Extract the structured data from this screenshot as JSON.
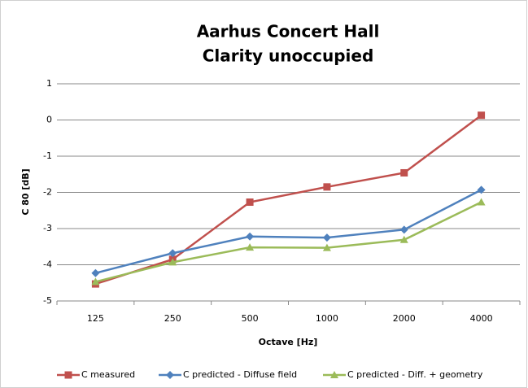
{
  "chart_data": {
    "type": "line",
    "title": [
      "Aarhus Concert Hall",
      "Clarity unoccupied"
    ],
    "x_label": "Octave [Hz]",
    "y_label": "C 80  [dB]",
    "categories": [
      "125",
      "250",
      "500",
      "1000",
      "2000",
      "4000"
    ],
    "series": [
      {
        "name": "C measured",
        "color": "#c0504d",
        "marker": "square",
        "values": [
          -4.53,
          -3.85,
          -2.27,
          -1.85,
          -1.46,
          0.13
        ]
      },
      {
        "name": "C predicted - Diffuse field",
        "color": "#4f81bd",
        "marker": "diamond",
        "values": [
          -4.23,
          -3.68,
          -3.22,
          -3.25,
          -3.03,
          -1.93
        ]
      },
      {
        "name": "C predicted - Diff. + geometry",
        "color": "#9bbb59",
        "marker": "triangle",
        "values": [
          -4.47,
          -3.93,
          -3.52,
          -3.53,
          -3.31,
          -2.27
        ]
      }
    ],
    "ylim": [
      -5,
      1
    ],
    "yticks": [
      -5,
      -4,
      -3,
      -2,
      -1,
      0,
      1
    ],
    "grid": true,
    "legend": "bottom"
  }
}
